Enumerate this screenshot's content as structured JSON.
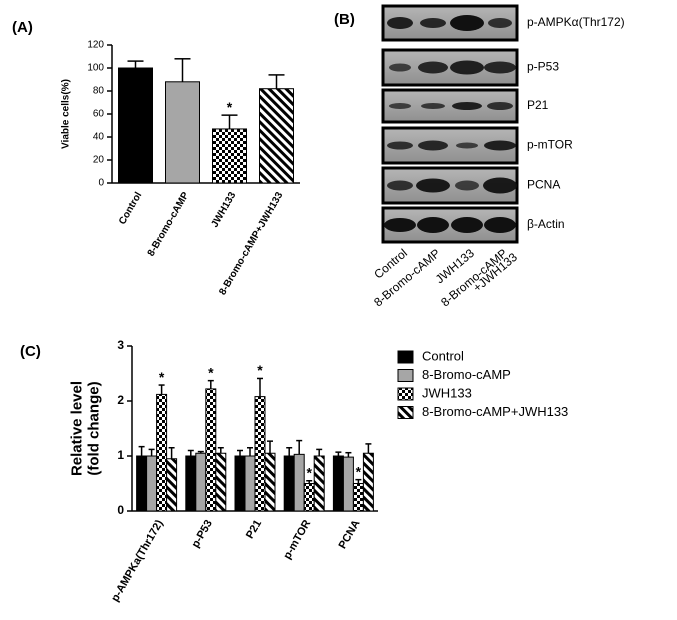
{
  "chart_data": [
    {
      "type": "bar",
      "panel": "(A)",
      "ylabel": [
        "Viable cells(%)"
      ],
      "categories": [
        "Control",
        "8-Bromo-cAMP",
        "JWH133",
        "8-Bromo-cAMP+JWH133"
      ],
      "series": [
        {
          "values": [
            100,
            88,
            47,
            82
          ],
          "errors": [
            6,
            20,
            12,
            12
          ],
          "fills": [
            "#000000",
            "#a6a6a6",
            "checker",
            "hatch"
          ]
        }
      ],
      "ylim": [
        0,
        120
      ],
      "yticks": [
        0,
        20,
        40,
        60,
        80,
        100,
        120
      ],
      "annotations": [
        {
          "text": "*",
          "series": 0,
          "category": "JWH133"
        }
      ]
    },
    {
      "type": "bar",
      "panel": "(C)",
      "ylabel": [
        "Relative level",
        "(fold change)"
      ],
      "categories": [
        "p-AMPKa(Thr172)",
        "p-P53",
        "P21",
        "p-mTOR",
        "PCNA"
      ],
      "series": [
        {
          "name": "Control",
          "fill": "#000000",
          "values": [
            1.0,
            1.0,
            1.0,
            1.0,
            1.0
          ],
          "errors": [
            0.17,
            0.1,
            0.1,
            0.15,
            0.07
          ]
        },
        {
          "name": "8-Bromo-cAMP",
          "fill": "#a6a6a6",
          "values": [
            1.0,
            1.05,
            1.0,
            1.03,
            0.98
          ],
          "errors": [
            0.12,
            0.03,
            0.15,
            0.25,
            0.08
          ]
        },
        {
          "name": "JWH133",
          "fill": "checker",
          "values": [
            2.12,
            2.22,
            2.08,
            0.5,
            0.5
          ],
          "errors": [
            0.17,
            0.15,
            0.33,
            0.05,
            0.07
          ]
        },
        {
          "name": "8-Bromo-cAMP+JWH133",
          "fill": "hatch",
          "values": [
            0.95,
            1.05,
            1.05,
            1.0,
            1.05
          ],
          "errors": [
            0.2,
            0.1,
            0.22,
            0.12,
            0.17
          ]
        }
      ],
      "ylim": [
        0,
        3
      ],
      "yticks": [
        0,
        1,
        2,
        3
      ],
      "legend": "top-right",
      "annotations": [
        {
          "text": "*",
          "series": 2,
          "category": "p-AMPKa(Thr172)"
        },
        {
          "text": "*",
          "series": 2,
          "category": "p-P53"
        },
        {
          "text": "*",
          "series": 2,
          "category": "P21"
        },
        {
          "text": "*",
          "series": 2,
          "category": "p-mTOR"
        },
        {
          "text": "*",
          "series": 2,
          "category": "PCNA"
        }
      ]
    }
  ],
  "blot": {
    "panel": "(B)",
    "rows": [
      "p-AMPKα(Thr172)",
      "p-P53",
      "P21",
      "p-mTOR",
      "PCNA",
      "β-Actin"
    ],
    "lanes": [
      [
        "Control"
      ],
      [
        "8-Bromo-cAMP"
      ],
      [
        "JWH133"
      ],
      [
        "8-Bromo-cAMP",
        "+JWH133"
      ]
    ]
  }
}
